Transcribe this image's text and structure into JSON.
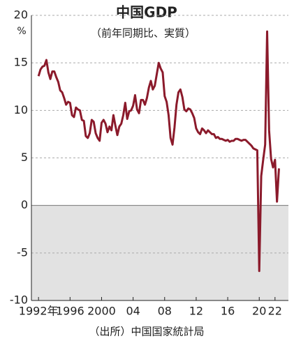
{
  "chart_data": {
    "type": "line",
    "title": "中国GDP",
    "subtitle": "（前年同期比、実質）",
    "ylabel": "%",
    "source": "（出所）中国国家統計局",
    "x": [
      1992,
      1992.25,
      1992.5,
      1992.75,
      1993,
      1993.25,
      1993.5,
      1993.75,
      1994,
      1994.25,
      1994.5,
      1994.75,
      1995,
      1995.25,
      1995.5,
      1995.75,
      1996,
      1996.25,
      1996.5,
      1996.75,
      1997,
      1997.25,
      1997.5,
      1997.75,
      1998,
      1998.25,
      1998.5,
      1998.75,
      1999,
      1999.25,
      1999.5,
      1999.75,
      2000,
      2000.25,
      2000.5,
      2000.75,
      2001,
      2001.25,
      2001.5,
      2001.75,
      2002,
      2002.25,
      2002.5,
      2002.75,
      2003,
      2003.25,
      2003.5,
      2003.75,
      2004,
      2004.25,
      2004.5,
      2004.75,
      2005,
      2005.25,
      2005.5,
      2005.75,
      2006,
      2006.25,
      2006.5,
      2006.75,
      2007,
      2007.25,
      2007.5,
      2007.75,
      2008,
      2008.25,
      2008.5,
      2008.75,
      2009,
      2009.25,
      2009.5,
      2009.75,
      2010,
      2010.25,
      2010.5,
      2010.75,
      2011,
      2011.25,
      2011.5,
      2011.75,
      2012,
      2012.25,
      2012.5,
      2012.75,
      2013,
      2013.25,
      2013.5,
      2013.75,
      2014,
      2014.25,
      2014.5,
      2014.75,
      2015,
      2015.25,
      2015.5,
      2015.75,
      2016,
      2016.25,
      2016.5,
      2016.75,
      2017,
      2017.25,
      2017.5,
      2017.75,
      2018,
      2018.25,
      2018.5,
      2018.75,
      2019,
      2019.25,
      2019.5,
      2019.75,
      2020,
      2020.25,
      2020.5,
      2020.75,
      2021,
      2021.25,
      2021.5,
      2021.75,
      2022,
      2022.25,
      2022.5
    ],
    "series": [
      {
        "color": "#8b1a2b",
        "values": [
          13.6,
          14.3,
          14.6,
          14.7,
          15.3,
          14.0,
          13.3,
          14.1,
          14.1,
          13.5,
          13.0,
          12.1,
          11.9,
          11.3,
          10.6,
          10.9,
          10.8,
          9.5,
          9.3,
          10.3,
          10.1,
          10.0,
          9.0,
          8.9,
          7.3,
          7.1,
          7.6,
          9.0,
          8.8,
          7.6,
          7.1,
          6.8,
          8.7,
          9.0,
          8.6,
          7.7,
          8.3,
          7.9,
          9.5,
          8.4,
          7.4,
          8.3,
          8.6,
          9.5,
          10.8,
          9.1,
          9.9,
          10.0,
          10.5,
          11.6,
          10.1,
          9.7,
          11.1,
          11.1,
          10.6,
          11.3,
          12.4,
          13.1,
          12.2,
          12.6,
          13.8,
          15.0,
          14.4,
          14.0,
          11.5,
          10.9,
          9.5,
          7.1,
          6.4,
          8.2,
          10.6,
          11.9,
          12.2,
          11.4,
          10.1,
          9.9,
          10.2,
          10.1,
          9.7,
          9.2,
          8.1,
          7.7,
          7.5,
          8.1,
          7.9,
          7.6,
          7.9,
          7.7,
          7.5,
          7.5,
          7.1,
          7.2,
          7.0,
          7.0,
          6.9,
          6.8,
          6.9,
          6.7,
          6.8,
          6.8,
          7.0,
          7.0,
          6.9,
          6.8,
          6.9,
          6.9,
          6.7,
          6.5,
          6.3,
          6.0,
          5.9,
          5.8,
          -6.9,
          3.1,
          4.8,
          6.4,
          18.3,
          7.9,
          4.9,
          4.0,
          4.8,
          0.4,
          3.9
        ]
      }
    ],
    "xlim": [
      1991.1,
      2023.7
    ],
    "xticks": [
      {
        "value": 1992,
        "label": "1992年"
      },
      1996,
      2000,
      {
        "value": 2004,
        "label": "04"
      },
      {
        "value": 2008,
        "label": "08"
      },
      {
        "value": 2012,
        "label": "12"
      },
      {
        "value": 2016,
        "label": "16"
      },
      {
        "value": 2020,
        "label": "20"
      },
      {
        "value": 2022,
        "label": "22"
      }
    ],
    "ylim": [
      -10,
      20
    ],
    "yticks": [
      -10,
      -5,
      0,
      5,
      10,
      15,
      20
    ],
    "grid": true
  }
}
